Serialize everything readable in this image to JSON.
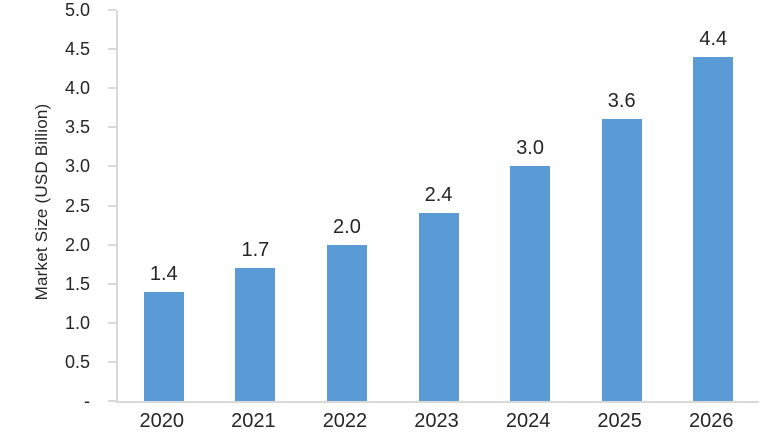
{
  "chart_data": {
    "type": "bar",
    "title": "",
    "categories": [
      "2020",
      "2021",
      "2022",
      "2023",
      "2024",
      "2025",
      "2026"
    ],
    "values": [
      1.4,
      1.7,
      2.0,
      2.4,
      3.0,
      3.6,
      4.4
    ],
    "value_labels": [
      "1.4",
      "1.7",
      "2.0",
      "2.4",
      "3.0",
      "3.6",
      "4.4"
    ],
    "xlabel": "",
    "ylabel": "Market Size (USD Billion)",
    "ylim": [
      0,
      5
    ],
    "ytick_step": 0.5,
    "ytick_labels": [
      "-",
      "0.5",
      "1.0",
      "1.5",
      "2.0",
      "2.5",
      "3.0",
      "3.5",
      "4.0",
      "4.5",
      "5.0"
    ],
    "grid": false,
    "legend": false,
    "colors": {
      "bar": "#5B9BD5",
      "axis": "#D9D9D9",
      "text": "#262626"
    }
  }
}
